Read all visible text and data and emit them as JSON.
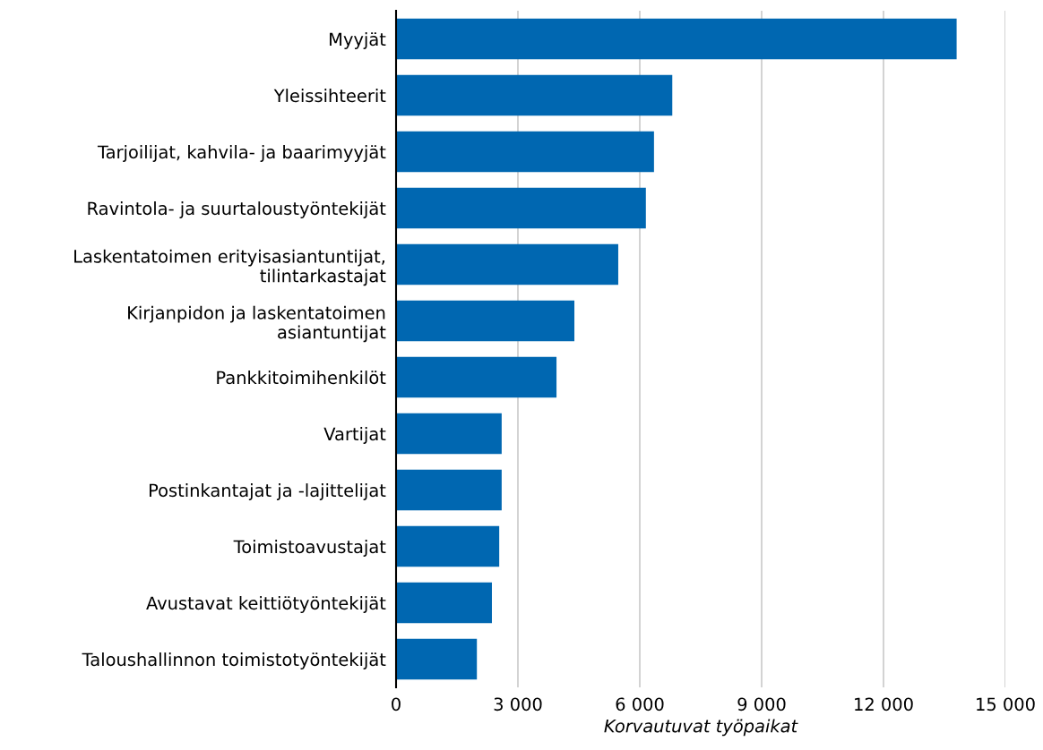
{
  "chart_data": {
    "type": "bar",
    "orientation": "horizontal",
    "xlabel": "Korvautuvat työpaikat",
    "categories": [
      "Myyjät",
      "Yleissihteerit",
      "Tarjoilijat, kahvila- ja baarimyyjät",
      "Ravintola- ja suurtaloustyöntekijät",
      "Laskentatoimen erityisasiantuntijat,\ntilintarkastajat",
      "Kirjanpidon ja laskentatoimen\nasiantuntijat",
      "Pankkitoimihenkilöt",
      "Vartijat",
      "Postinkantajat ja -lajittelijat",
      "Toimistoavustajat",
      "Avustavat keittiötyöntekijät",
      "Taloushallinnon toimistotyöntekijät"
    ],
    "values": [
      13800,
      6800,
      6350,
      6150,
      5470,
      4390,
      3950,
      2600,
      2600,
      2540,
      2360,
      1990
    ],
    "color": "#0067b1",
    "xlim": [
      0,
      15000
    ],
    "xticks": [
      {
        "value": 0,
        "label": "0"
      },
      {
        "value": 3000,
        "label": "3 000"
      },
      {
        "value": 6000,
        "label": "6 000"
      },
      {
        "value": 9000,
        "label": "9 000"
      },
      {
        "value": 12000,
        "label": "12 000"
      },
      {
        "value": 15000,
        "label": "15 000"
      }
    ],
    "grid": "x"
  }
}
